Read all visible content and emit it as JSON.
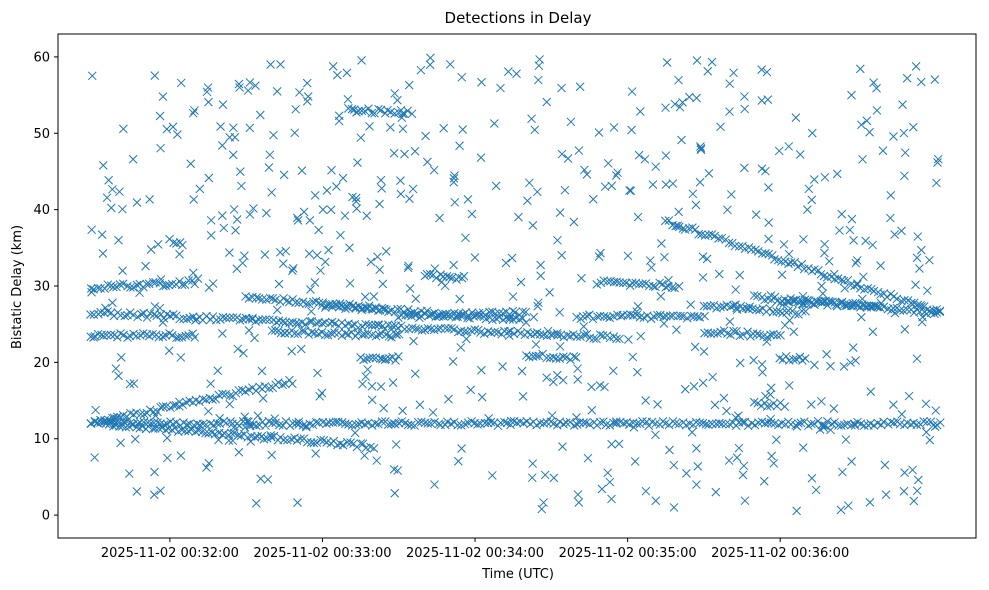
{
  "chart_data": {
    "type": "scatter",
    "title": "Detections in Delay",
    "xlabel": "Time (UTC)",
    "ylabel": "Bistatic Delay (km)",
    "marker": "x",
    "color": "#1f77b4",
    "grid": false,
    "legend": "none",
    "xlim": [
      "2025-11-02 00:31:16",
      "2025-11-02 00:37:17"
    ],
    "ylim": [
      -3,
      63
    ],
    "x_ticks": [
      "2025-11-02 00:32:00",
      "2025-11-02 00:33:00",
      "2025-11-02 00:34:00",
      "2025-11-02 00:35:00",
      "2025-11-02 00:36:00"
    ],
    "y_ticks": [
      0,
      10,
      20,
      30,
      40,
      50,
      60
    ],
    "data_time_range": [
      "2025-11-02 00:31:29",
      "2025-11-02 00:37:03"
    ],
    "tracks": [
      {
        "from": [
          "2025-11-02 00:31:29",
          12.0
        ],
        "to": [
          "2025-11-02 00:37:03",
          12.0
        ]
      },
      {
        "from": [
          "2025-11-02 00:31:29",
          12.0
        ],
        "to": [
          "2025-11-02 00:32:48",
          17.5
        ]
      },
      {
        "from": [
          "2025-11-02 00:31:35",
          12.0
        ],
        "to": [
          "2025-11-02 00:33:20",
          9.0
        ]
      },
      {
        "from": [
          "2025-11-02 00:31:29",
          26.5
        ],
        "to": [
          "2025-11-02 00:34:57",
          23.2
        ]
      },
      {
        "from": [
          "2025-11-02 00:32:30",
          28.5
        ],
        "to": [
          "2025-11-02 00:33:25",
          27.0
        ]
      },
      {
        "from": [
          "2025-11-02 00:33:00",
          27.5
        ],
        "to": [
          "2025-11-02 00:34:20",
          25.5
        ]
      },
      {
        "from": [
          "2025-11-02 00:33:30",
          26.0
        ],
        "to": [
          "2025-11-02 00:34:20",
          26.5
        ]
      },
      {
        "from": [
          "2025-11-02 00:31:29",
          23.5
        ],
        "to": [
          "2025-11-02 00:32:10",
          23.5
        ]
      },
      {
        "from": [
          "2025-11-02 00:32:40",
          24.0
        ],
        "to": [
          "2025-11-02 00:33:30",
          23.5
        ]
      },
      {
        "from": [
          "2025-11-02 00:31:29",
          29.8
        ],
        "to": [
          "2025-11-02 00:32:10",
          30.5
        ]
      },
      {
        "from": [
          "2025-11-02 00:33:10",
          53.0
        ],
        "to": [
          "2025-11-02 00:33:35",
          52.8
        ]
      },
      {
        "from": [
          "2025-11-02 00:33:40",
          31.5
        ],
        "to": [
          "2025-11-02 00:33:55",
          31.0
        ]
      },
      {
        "from": [
          "2025-11-02 00:34:20",
          21.0
        ],
        "to": [
          "2025-11-02 00:34:40",
          20.5
        ]
      },
      {
        "from": [
          "2025-11-02 00:34:48",
          30.5
        ],
        "to": [
          "2025-11-02 00:35:20",
          30.0
        ]
      },
      {
        "from": [
          "2025-11-02 00:34:40",
          26.0
        ],
        "to": [
          "2025-11-02 00:35:30",
          26.0
        ]
      },
      {
        "from": [
          "2025-11-02 00:35:30",
          27.5
        ],
        "to": [
          "2025-11-02 00:36:10",
          26.5
        ]
      },
      {
        "from": [
          "2025-11-02 00:35:15",
          38.5
        ],
        "to": [
          "2025-11-02 00:37:03",
          26.5
        ]
      },
      {
        "from": [
          "2025-11-02 00:35:50",
          28.5
        ],
        "to": [
          "2025-11-02 00:37:03",
          26.5
        ]
      },
      {
        "from": [
          "2025-11-02 00:36:00",
          28.0
        ],
        "to": [
          "2025-11-02 00:36:40",
          27.5
        ]
      },
      {
        "from": [
          "2025-11-02 00:35:30",
          24.0
        ],
        "to": [
          "2025-11-02 00:36:00",
          23.5
        ]
      },
      {
        "from": [
          "2025-11-02 00:35:50",
          14.5
        ],
        "to": [
          "2025-11-02 00:36:00",
          14.5
        ]
      },
      {
        "from": [
          "2025-11-02 00:32:00",
          36.0
        ],
        "to": [
          "2025-11-02 00:32:05",
          35.5
        ]
      },
      {
        "from": [
          "2025-11-02 00:33:15",
          20.5
        ],
        "to": [
          "2025-11-02 00:33:30",
          20.5
        ]
      },
      {
        "from": [
          "2025-11-02 00:36:00",
          20.5
        ],
        "to": [
          "2025-11-02 00:36:10",
          20.5
        ]
      }
    ],
    "clutter_points": 650
  }
}
